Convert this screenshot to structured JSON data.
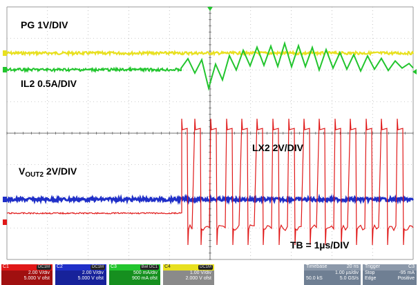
{
  "labels": {
    "pg": "PG 1V/DIV",
    "il2": "IL2 0.5A/DIV",
    "lx2": "LX2 2V/DIV",
    "vout_main": "V",
    "vout_sub": "OUT2",
    "vout_scale": " 2V/DIV",
    "tb": "TB = 1µs/DIV"
  },
  "channels": [
    {
      "id": "C1",
      "tag": "DC1M",
      "vdiv": "2.00 V/div",
      "offset": "5.000 V ofst",
      "color": "#e01818"
    },
    {
      "id": "C2",
      "tag": "DC1M",
      "vdiv": "2.00 V/div",
      "offset": "5.000 V ofst",
      "color": "#1f2fc8"
    },
    {
      "id": "C3",
      "tag": "Bwl DC1",
      "vdiv": "500 mA/div",
      "offset": "900 mA ofst",
      "color": "#22c52e"
    },
    {
      "id": "C4",
      "tag": "DC1M",
      "vdiv": "1.00 V/div",
      "offset": "2.000 V ofst",
      "color": "#e8e020"
    }
  ],
  "timebase": {
    "label": "Timebase",
    "value": "20 ns",
    "rate": "1.00 µs/div",
    "sr": "50.0 kS",
    "sr2": "5.0 GS/s"
  },
  "trigger": {
    "label": "Trigger",
    "chan": "C3",
    "mode": "Stop",
    "level": "-95 mA",
    "edge": "Edge",
    "slope": "Positive"
  },
  "colors": {
    "pg": "#e8e020",
    "il2": "#22c52e",
    "lx2": "#e01818",
    "vout": "#1f2fc8",
    "grid": "#9a9a9a"
  }
}
